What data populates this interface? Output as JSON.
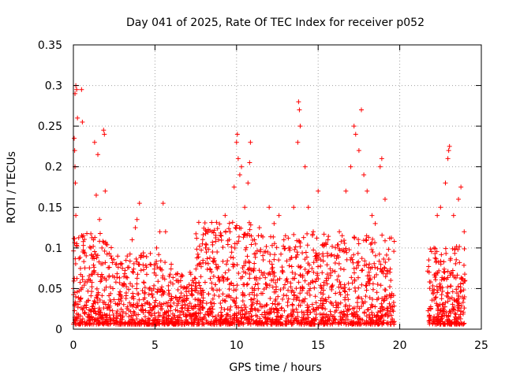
{
  "chart_data": {
    "type": "scatter",
    "title": "Day 041 of 2025, Rate Of TEC Index for receiver p052",
    "xlabel": "GPS time / hours",
    "ylabel": "ROTI / TECUs",
    "xlim": [
      0,
      25
    ],
    "ylim": [
      0,
      0.35
    ],
    "xticks": [
      "0",
      "5",
      "10",
      "15",
      "20",
      "25"
    ],
    "yticks": [
      "0",
      "0.05",
      "0.1",
      "0.15",
      "0.2",
      "0.25",
      "0.3",
      "0.35"
    ],
    "grid": true,
    "marker": "+",
    "color": "#ff0000",
    "data_gap_hours": [
      19.7,
      21.7
    ],
    "series": [
      {
        "points": [
          [
            0.1,
            0.29
          ],
          [
            0.15,
            0.3
          ],
          [
            0.2,
            0.295
          ],
          [
            0.25,
            0.26
          ],
          [
            0.5,
            0.295
          ],
          [
            0.55,
            0.255
          ],
          [
            0.05,
            0.235
          ],
          [
            0.08,
            0.22
          ],
          [
            0.1,
            0.2
          ],
          [
            0.12,
            0.18
          ],
          [
            0.15,
            0.14
          ],
          [
            0.0,
            0.05
          ],
          [
            1.3,
            0.23
          ],
          [
            1.5,
            0.215
          ],
          [
            1.4,
            0.165
          ],
          [
            1.6,
            0.135
          ],
          [
            1.75,
            0.1
          ],
          [
            1.85,
            0.245
          ],
          [
            1.9,
            0.24
          ],
          [
            1.95,
            0.17
          ],
          [
            2.0,
            0.105
          ],
          [
            2.3,
            0.09
          ],
          [
            2.6,
            0.08
          ],
          [
            3.0,
            0.075
          ],
          [
            3.3,
            0.09
          ],
          [
            3.6,
            0.11
          ],
          [
            3.8,
            0.125
          ],
          [
            3.9,
            0.135
          ],
          [
            4.05,
            0.155
          ],
          [
            4.3,
            0.09
          ],
          [
            4.7,
            0.08
          ],
          [
            5.1,
            0.1
          ],
          [
            5.3,
            0.12
          ],
          [
            5.5,
            0.155
          ],
          [
            5.65,
            0.12
          ],
          [
            6.0,
            0.08
          ],
          [
            6.4,
            0.06
          ],
          [
            6.9,
            0.05
          ],
          [
            7.3,
            0.06
          ],
          [
            7.7,
            0.08
          ],
          [
            8.1,
            0.1
          ],
          [
            8.5,
            0.12
          ],
          [
            8.9,
            0.11
          ],
          [
            9.3,
            0.14
          ],
          [
            9.6,
            0.12
          ],
          [
            9.85,
            0.175
          ],
          [
            10.0,
            0.23
          ],
          [
            10.05,
            0.24
          ],
          [
            10.1,
            0.21
          ],
          [
            10.2,
            0.19
          ],
          [
            10.3,
            0.2
          ],
          [
            10.5,
            0.15
          ],
          [
            10.7,
            0.18
          ],
          [
            10.8,
            0.205
          ],
          [
            10.85,
            0.23
          ],
          [
            11.1,
            0.11
          ],
          [
            11.4,
            0.125
          ],
          [
            11.7,
            0.095
          ],
          [
            12.0,
            0.15
          ],
          [
            12.3,
            0.13
          ],
          [
            12.6,
            0.14
          ],
          [
            12.9,
            0.11
          ],
          [
            13.2,
            0.1
          ],
          [
            13.5,
            0.15
          ],
          [
            13.75,
            0.23
          ],
          [
            13.8,
            0.28
          ],
          [
            13.85,
            0.27
          ],
          [
            13.9,
            0.25
          ],
          [
            14.2,
            0.2
          ],
          [
            14.4,
            0.15
          ],
          [
            14.7,
            0.12
          ],
          [
            15.0,
            0.17
          ],
          [
            15.3,
            0.09
          ],
          [
            15.6,
            0.11
          ],
          [
            16.0,
            0.09
          ],
          [
            16.3,
            0.12
          ],
          [
            16.7,
            0.17
          ],
          [
            17.0,
            0.2
          ],
          [
            17.2,
            0.25
          ],
          [
            17.3,
            0.24
          ],
          [
            17.5,
            0.22
          ],
          [
            17.65,
            0.27
          ],
          [
            17.8,
            0.19
          ],
          [
            18.0,
            0.17
          ],
          [
            18.3,
            0.14
          ],
          [
            18.5,
            0.13
          ],
          [
            18.8,
            0.2
          ],
          [
            18.9,
            0.21
          ],
          [
            19.1,
            0.16
          ],
          [
            19.4,
            0.07
          ],
          [
            21.8,
            0.07
          ],
          [
            22.1,
            0.1
          ],
          [
            22.3,
            0.14
          ],
          [
            22.5,
            0.15
          ],
          [
            22.8,
            0.18
          ],
          [
            22.95,
            0.21
          ],
          [
            23.0,
            0.22
          ],
          [
            23.05,
            0.225
          ],
          [
            23.3,
            0.14
          ],
          [
            23.6,
            0.16
          ],
          [
            23.75,
            0.175
          ],
          [
            23.95,
            0.12
          ],
          [
            24.0,
            0.06
          ]
        ]
      }
    ]
  }
}
